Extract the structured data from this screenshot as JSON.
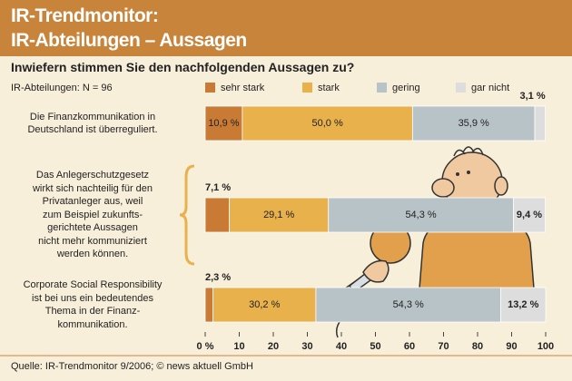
{
  "chart_data": {
    "type": "stacked-barh",
    "title": "IR-Trendmonitor:\nIR-Abteilungen – Aussagen",
    "subtitle": "Inwiefern stimmen Sie den nachfolgenden Aussagen zu?",
    "annotation": "IR-Abteilungen: N = 96",
    "source": "Quelle: IR-Trendmonitor 9/2006; © news aktuell GmbH",
    "categories": [
      "Die Finanzkommunikation in\nDeutschland ist überreguliert.",
      "Das Anlegerschutzgesetz\nwirkt sich nachteilig für den\nPrivatanleger aus, weil\nzum Beispiel zukunfts-\ngerichtete Aussagen\nnicht mehr kommuniziert\nwerden können.",
      "Corporate Social Responsibility\nist bei uns ein bedeutendes\nThema in der Finanz-\nkommunikation."
    ],
    "series": [
      {
        "name": "sehr stark",
        "color": "#c97b36",
        "values": [
          10.9,
          7.1,
          2.3
        ],
        "value_labels": [
          "10,9 %",
          "7,1 %",
          "2,3 %"
        ]
      },
      {
        "name": "stark",
        "color": "#e8b14c",
        "values": [
          50.0,
          29.1,
          30.2
        ],
        "value_labels": [
          "50,0 %",
          "29,1 %",
          "30,2 %"
        ]
      },
      {
        "name": "gering",
        "color": "#b8c3c7",
        "values": [
          35.9,
          54.3,
          54.3
        ],
        "value_labels": [
          "35,9 %",
          "54,3 %",
          "54,3 %"
        ]
      },
      {
        "name": "gar nicht",
        "color": "#dddddd",
        "values": [
          3.1,
          9.4,
          13.2
        ],
        "value_labels": [
          "3,1 %",
          "9,4 %",
          "13,2 %"
        ]
      }
    ],
    "xlim": [
      0,
      100
    ],
    "xticks": [
      {
        "value": 0,
        "label": "0 %"
      },
      10,
      20,
      30,
      40,
      50,
      60,
      70,
      80,
      90,
      100
    ]
  }
}
